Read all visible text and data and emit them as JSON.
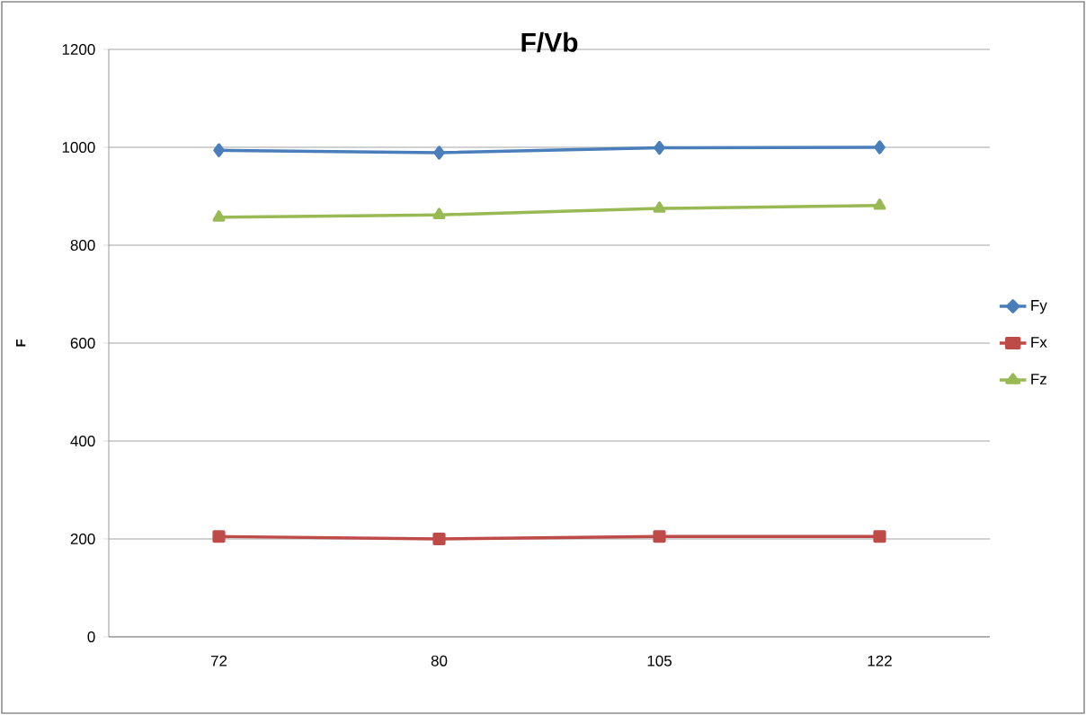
{
  "chart_data": {
    "type": "line",
    "title": "F/Vb",
    "ylabel": "F",
    "categories": [
      "72",
      "80",
      "105",
      "122"
    ],
    "series": [
      {
        "name": "Fy",
        "color": "#4a7ebb",
        "marker": "diamond",
        "values": [
          994,
          989,
          999,
          1000
        ]
      },
      {
        "name": "Fx",
        "color": "#be4b48",
        "marker": "square",
        "values": [
          205,
          200,
          205,
          205
        ]
      },
      {
        "name": "Fz",
        "color": "#98b954",
        "marker": "triangle",
        "values": [
          857,
          862,
          875,
          881
        ]
      }
    ],
    "ylim": [
      0,
      1200
    ],
    "yticks": [
      0,
      200,
      400,
      600,
      800,
      1000,
      1200
    ],
    "grid": "y",
    "legend": "right",
    "line_style": "solid"
  }
}
